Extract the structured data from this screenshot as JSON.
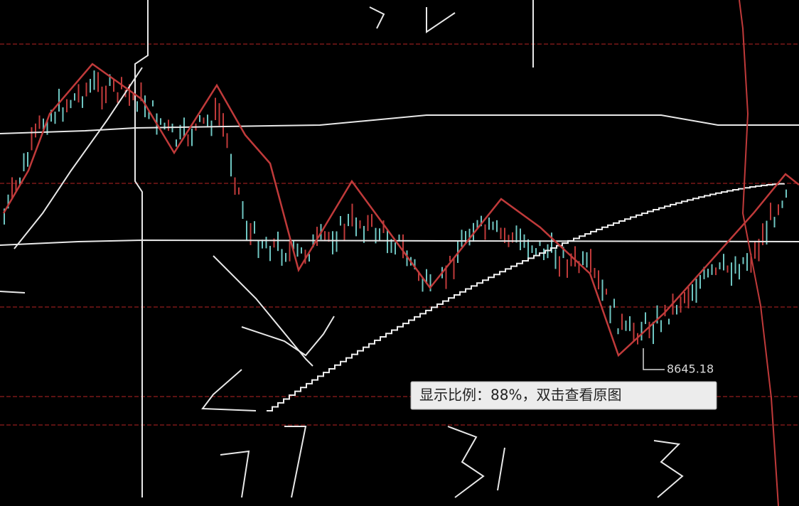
{
  "chart_annotation": {
    "low_label": "8645.18"
  },
  "tooltip": {
    "text": "显示比例：88%，双击查看原图"
  }
}
